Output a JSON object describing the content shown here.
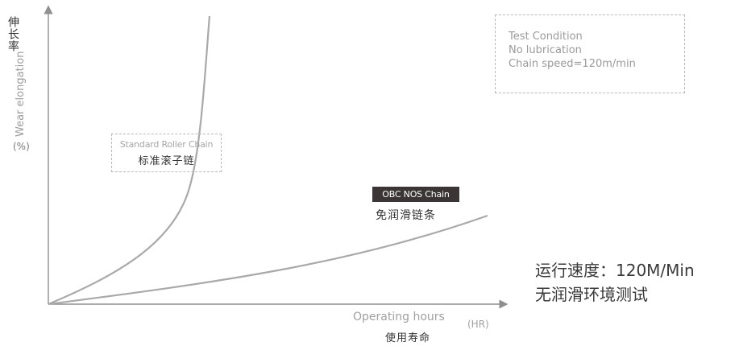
{
  "chart_data": {
    "type": "line",
    "title": "",
    "ylabel_cn": "伸长率",
    "ylabel_en": "Wear elongation",
    "yunit": "(%)",
    "xlabel_en": "Operating hours",
    "xunit": "(HR)",
    "xlabel_cn": "使用寿命",
    "axis_color": "#8f8f8f",
    "curve_color": "#a9a9a9",
    "series": [
      {
        "label_en": "Standard Roller Chain",
        "label_cn": "标准滚子链",
        "shape": "steep-exponential"
      },
      {
        "label_en": "OBC NOS Chain",
        "label_cn": "免润滑链条",
        "shape": "gentle-rise"
      }
    ]
  },
  "test_condition": {
    "line1": "Test Condition",
    "line2": "No lubrication",
    "line3": "Chain speed=120m/min"
  },
  "note": {
    "line1": "运行速度：120M/Min",
    "line2": "无润滑环境测试"
  }
}
